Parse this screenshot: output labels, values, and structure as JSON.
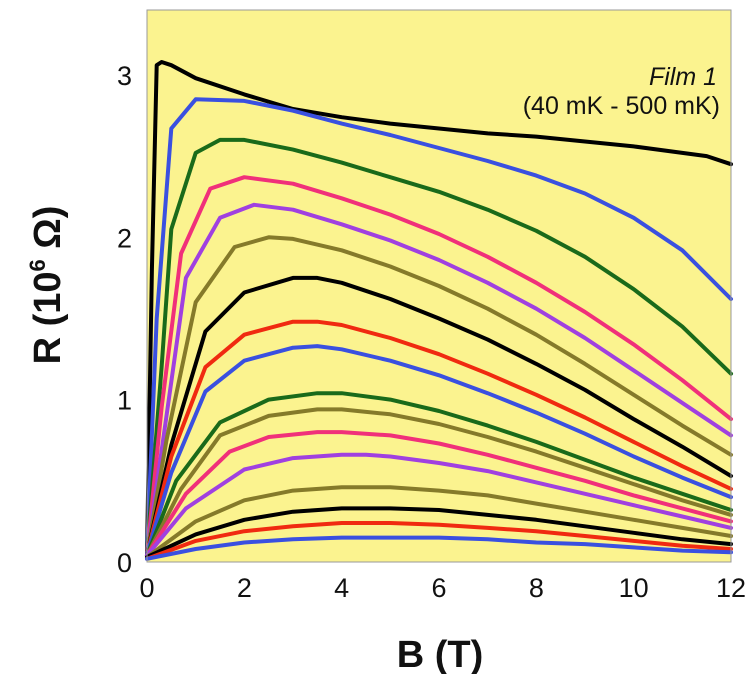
{
  "chart_data": {
    "type": "line",
    "title": "",
    "xlabel": "B (T)",
    "ylabel_main": "R (10",
    "ylabel_exp": "6",
    "ylabel_unit": " Ω)",
    "xlim": [
      0,
      12
    ],
    "ylim": [
      0,
      3.4
    ],
    "xticks": [
      0,
      2,
      4,
      6,
      8,
      10,
      12
    ],
    "yticks": [
      0,
      1,
      2,
      3
    ],
    "plot_background": "#fbf38f",
    "grid": false,
    "annotation_line1": "Film 1",
    "annotation_line2": "(40 mK - 500 mK)",
    "series": [
      {
        "color": "#000000",
        "points": [
          [
            0,
            0.06
          ],
          [
            0.1,
            1.8
          ],
          [
            0.2,
            3.06
          ],
          [
            0.3,
            3.08
          ],
          [
            0.5,
            3.06
          ],
          [
            1,
            2.98
          ],
          [
            2,
            2.88
          ],
          [
            3,
            2.79
          ],
          [
            4,
            2.74
          ],
          [
            5,
            2.7
          ],
          [
            6,
            2.67
          ],
          [
            7,
            2.64
          ],
          [
            8,
            2.62
          ],
          [
            9,
            2.59
          ],
          [
            10,
            2.56
          ],
          [
            11,
            2.52
          ],
          [
            11.5,
            2.5
          ],
          [
            12,
            2.45
          ]
        ]
      },
      {
        "color": "#3a50e0",
        "points": [
          [
            0,
            0.06
          ],
          [
            0.2,
            1.5
          ],
          [
            0.5,
            2.67
          ],
          [
            1,
            2.85
          ],
          [
            2,
            2.84
          ],
          [
            3,
            2.78
          ],
          [
            4,
            2.7
          ],
          [
            5,
            2.63
          ],
          [
            6,
            2.55
          ],
          [
            7,
            2.47
          ],
          [
            8,
            2.38
          ],
          [
            9,
            2.27
          ],
          [
            10,
            2.12
          ],
          [
            11,
            1.92
          ],
          [
            12,
            1.62
          ]
        ]
      },
      {
        "color": "#1a6a1a",
        "points": [
          [
            0,
            0.06
          ],
          [
            0.3,
            1.2
          ],
          [
            0.5,
            2.05
          ],
          [
            1,
            2.52
          ],
          [
            1.5,
            2.6
          ],
          [
            2,
            2.6
          ],
          [
            3,
            2.54
          ],
          [
            4,
            2.46
          ],
          [
            5,
            2.37
          ],
          [
            6,
            2.28
          ],
          [
            7,
            2.17
          ],
          [
            8,
            2.04
          ],
          [
            9,
            1.88
          ],
          [
            10,
            1.68
          ],
          [
            11,
            1.45
          ],
          [
            12,
            1.16
          ]
        ]
      },
      {
        "color": "#f0307a",
        "points": [
          [
            0,
            0.05
          ],
          [
            0.3,
            0.95
          ],
          [
            0.7,
            1.9
          ],
          [
            1.3,
            2.3
          ],
          [
            2,
            2.37
          ],
          [
            3,
            2.33
          ],
          [
            4,
            2.24
          ],
          [
            5,
            2.14
          ],
          [
            6,
            2.02
          ],
          [
            7,
            1.88
          ],
          [
            8,
            1.72
          ],
          [
            9,
            1.54
          ],
          [
            10,
            1.34
          ],
          [
            11,
            1.12
          ],
          [
            12,
            0.88
          ]
        ]
      },
      {
        "color": "#a040e0",
        "points": [
          [
            0,
            0.05
          ],
          [
            0.4,
            0.9
          ],
          [
            0.8,
            1.75
          ],
          [
            1.5,
            2.12
          ],
          [
            2.2,
            2.2
          ],
          [
            3,
            2.17
          ],
          [
            4,
            2.08
          ],
          [
            5,
            1.98
          ],
          [
            6,
            1.86
          ],
          [
            7,
            1.72
          ],
          [
            8,
            1.56
          ],
          [
            9,
            1.38
          ],
          [
            10,
            1.18
          ],
          [
            11,
            0.98
          ],
          [
            12,
            0.78
          ]
        ]
      },
      {
        "color": "#857a2a",
        "points": [
          [
            0,
            0.05
          ],
          [
            0.4,
            0.75
          ],
          [
            1,
            1.6
          ],
          [
            1.8,
            1.94
          ],
          [
            2.5,
            2.0
          ],
          [
            3,
            1.99
          ],
          [
            4,
            1.92
          ],
          [
            5,
            1.82
          ],
          [
            6,
            1.7
          ],
          [
            7,
            1.56
          ],
          [
            8,
            1.4
          ],
          [
            9,
            1.22
          ],
          [
            10,
            1.03
          ],
          [
            11,
            0.84
          ],
          [
            12,
            0.66
          ]
        ]
      },
      {
        "color": "#000000",
        "points": [
          [
            0,
            0.05
          ],
          [
            0.5,
            0.72
          ],
          [
            1.2,
            1.42
          ],
          [
            2,
            1.66
          ],
          [
            3,
            1.75
          ],
          [
            3.5,
            1.75
          ],
          [
            4,
            1.72
          ],
          [
            5,
            1.62
          ],
          [
            6,
            1.5
          ],
          [
            7,
            1.37
          ],
          [
            8,
            1.22
          ],
          [
            9,
            1.06
          ],
          [
            10,
            0.88
          ],
          [
            11,
            0.71
          ],
          [
            12,
            0.53
          ]
        ]
      },
      {
        "color": "#f02a10",
        "points": [
          [
            0,
            0.05
          ],
          [
            0.5,
            0.65
          ],
          [
            1.2,
            1.2
          ],
          [
            2,
            1.4
          ],
          [
            3,
            1.48
          ],
          [
            3.5,
            1.48
          ],
          [
            4,
            1.46
          ],
          [
            5,
            1.38
          ],
          [
            6,
            1.28
          ],
          [
            7,
            1.16
          ],
          [
            8,
            1.03
          ],
          [
            9,
            0.89
          ],
          [
            10,
            0.74
          ],
          [
            11,
            0.59
          ],
          [
            12,
            0.45
          ]
        ]
      },
      {
        "color": "#3a50e0",
        "points": [
          [
            0,
            0.05
          ],
          [
            0.5,
            0.55
          ],
          [
            1.2,
            1.05
          ],
          [
            2,
            1.24
          ],
          [
            3,
            1.32
          ],
          [
            3.5,
            1.33
          ],
          [
            4,
            1.31
          ],
          [
            5,
            1.24
          ],
          [
            6,
            1.15
          ],
          [
            7,
            1.04
          ],
          [
            8,
            0.92
          ],
          [
            9,
            0.79
          ],
          [
            10,
            0.65
          ],
          [
            11,
            0.52
          ],
          [
            12,
            0.4
          ]
        ]
      },
      {
        "color": "#1a6a1a",
        "points": [
          [
            0,
            0.04
          ],
          [
            0.6,
            0.5
          ],
          [
            1.5,
            0.86
          ],
          [
            2.5,
            1.0
          ],
          [
            3.5,
            1.04
          ],
          [
            4,
            1.04
          ],
          [
            5,
            1.0
          ],
          [
            6,
            0.93
          ],
          [
            7,
            0.84
          ],
          [
            8,
            0.74
          ],
          [
            9,
            0.63
          ],
          [
            10,
            0.52
          ],
          [
            11,
            0.42
          ],
          [
            12,
            0.32
          ]
        ]
      },
      {
        "color": "#857a2a",
        "points": [
          [
            0,
            0.04
          ],
          [
            0.7,
            0.45
          ],
          [
            1.5,
            0.78
          ],
          [
            2.5,
            0.9
          ],
          [
            3.5,
            0.94
          ],
          [
            4,
            0.94
          ],
          [
            5,
            0.91
          ],
          [
            6,
            0.85
          ],
          [
            7,
            0.77
          ],
          [
            8,
            0.68
          ],
          [
            9,
            0.58
          ],
          [
            10,
            0.48
          ],
          [
            11,
            0.38
          ],
          [
            12,
            0.29
          ]
        ]
      },
      {
        "color": "#f0307a",
        "points": [
          [
            0,
            0.04
          ],
          [
            0.8,
            0.42
          ],
          [
            1.7,
            0.68
          ],
          [
            2.5,
            0.77
          ],
          [
            3.5,
            0.8
          ],
          [
            4,
            0.8
          ],
          [
            5,
            0.78
          ],
          [
            6,
            0.73
          ],
          [
            7,
            0.66
          ],
          [
            8,
            0.58
          ],
          [
            9,
            0.5
          ],
          [
            10,
            0.41
          ],
          [
            11,
            0.33
          ],
          [
            12,
            0.25
          ]
        ]
      },
      {
        "color": "#a040e0",
        "points": [
          [
            0,
            0.04
          ],
          [
            0.8,
            0.33
          ],
          [
            2,
            0.57
          ],
          [
            3,
            0.64
          ],
          [
            4,
            0.66
          ],
          [
            4.5,
            0.66
          ],
          [
            5,
            0.65
          ],
          [
            6,
            0.61
          ],
          [
            7,
            0.56
          ],
          [
            8,
            0.49
          ],
          [
            9,
            0.42
          ],
          [
            10,
            0.35
          ],
          [
            11,
            0.28
          ],
          [
            12,
            0.21
          ]
        ]
      },
      {
        "color": "#857a2a",
        "points": [
          [
            0,
            0.03
          ],
          [
            1,
            0.25
          ],
          [
            2,
            0.38
          ],
          [
            3,
            0.44
          ],
          [
            4,
            0.46
          ],
          [
            5,
            0.46
          ],
          [
            6,
            0.44
          ],
          [
            7,
            0.41
          ],
          [
            8,
            0.36
          ],
          [
            9,
            0.31
          ],
          [
            10,
            0.26
          ],
          [
            11,
            0.21
          ],
          [
            12,
            0.16
          ]
        ]
      },
      {
        "color": "#000000",
        "points": [
          [
            0,
            0.03
          ],
          [
            1,
            0.17
          ],
          [
            2,
            0.26
          ],
          [
            3,
            0.31
          ],
          [
            4,
            0.33
          ],
          [
            5,
            0.33
          ],
          [
            6,
            0.32
          ],
          [
            7,
            0.29
          ],
          [
            8,
            0.26
          ],
          [
            9,
            0.22
          ],
          [
            10,
            0.18
          ],
          [
            11,
            0.14
          ],
          [
            12,
            0.11
          ]
        ]
      },
      {
        "color": "#f02a10",
        "points": [
          [
            0,
            0.02
          ],
          [
            1,
            0.13
          ],
          [
            2,
            0.19
          ],
          [
            3,
            0.22
          ],
          [
            4,
            0.24
          ],
          [
            5,
            0.24
          ],
          [
            6,
            0.23
          ],
          [
            7,
            0.21
          ],
          [
            8,
            0.19
          ],
          [
            9,
            0.16
          ],
          [
            10,
            0.13
          ],
          [
            11,
            0.1
          ],
          [
            12,
            0.08
          ]
        ]
      },
      {
        "color": "#3a50e0",
        "points": [
          [
            0,
            0.02
          ],
          [
            1,
            0.08
          ],
          [
            2,
            0.12
          ],
          [
            3,
            0.14
          ],
          [
            4,
            0.15
          ],
          [
            5,
            0.15
          ],
          [
            6,
            0.15
          ],
          [
            7,
            0.14
          ],
          [
            8,
            0.12
          ],
          [
            9,
            0.11
          ],
          [
            10,
            0.09
          ],
          [
            11,
            0.07
          ],
          [
            12,
            0.06
          ]
        ]
      }
    ]
  }
}
